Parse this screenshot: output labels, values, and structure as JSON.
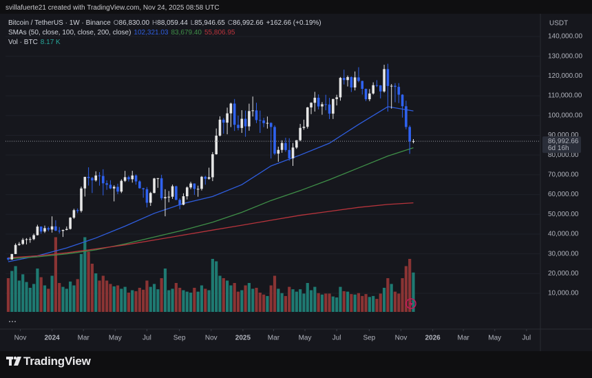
{
  "header": {
    "attribution": "svillafuerte21 created with TradingView.com, Nov 24, 2025 08:58 UTC"
  },
  "chart_data": {
    "type": "candlestick",
    "symbol": "Bitcoin / TetherUS · 1W · Binance",
    "ohlc_fields": [
      {
        "key": "O",
        "label": "86,830.00"
      },
      {
        "key": "H",
        "label": "88,059.44"
      },
      {
        "key": "L",
        "label": "85,946.65"
      },
      {
        "key": "C",
        "label": "86,992.66"
      }
    ],
    "change_label": "+162.66 (+0.19%)",
    "sma_title": "SMAs (50, close, 100, close, 200, close)",
    "volume_title": "Vol · BTC",
    "currency": "USDT",
    "up_color": "#e6e6e6",
    "down_color": "#2f62f0",
    "ohlc": [
      [
        27950,
        28100,
        26550,
        27150
      ],
      [
        27150,
        30000,
        26950,
        29900
      ],
      [
        29900,
        35280,
        29850,
        34500
      ],
      [
        34500,
        35980,
        34080,
        35000
      ],
      [
        35000,
        38000,
        34530,
        37100
      ],
      [
        37100,
        37960,
        34750,
        37400
      ],
      [
        37400,
        38430,
        35600,
        37450
      ],
      [
        37450,
        40250,
        36900,
        39450
      ],
      [
        39450,
        44700,
        39300,
        43800
      ],
      [
        43800,
        43900,
        40200,
        41300
      ],
      [
        41300,
        44300,
        40550,
        43000
      ],
      [
        43000,
        43800,
        41400,
        42300
      ],
      [
        42300,
        48970,
        40750,
        43900
      ],
      [
        43900,
        47000,
        41500,
        41700
      ],
      [
        41700,
        43580,
        40300,
        41600
      ],
      [
        41600,
        42250,
        38550,
        42100
      ],
      [
        42100,
        43860,
        41880,
        42600
      ],
      [
        42600,
        48590,
        42270,
        48300
      ],
      [
        48300,
        52800,
        47700,
        52100
      ],
      [
        52100,
        52980,
        50600,
        51700
      ],
      [
        51700,
        64000,
        50900,
        63100
      ],
      [
        63100,
        69000,
        59000,
        68950
      ],
      [
        68950,
        73800,
        64550,
        68400
      ],
      [
        68400,
        68920,
        60780,
        67200
      ],
      [
        67200,
        71770,
        66540,
        69650
      ],
      [
        69650,
        71340,
        64500,
        69400
      ],
      [
        69400,
        72800,
        59600,
        65700
      ],
      [
        65700,
        67200,
        62400,
        64950
      ],
      [
        64950,
        67250,
        62750,
        63100
      ],
      [
        63100,
        64750,
        56550,
        63900
      ],
      [
        63900,
        65500,
        60190,
        61500
      ],
      [
        61500,
        67700,
        60750,
        66950
      ],
      [
        66950,
        71980,
        66350,
        68800
      ],
      [
        68800,
        69560,
        66600,
        67750
      ],
      [
        67750,
        72000,
        66050,
        69650
      ],
      [
        69650,
        70200,
        65000,
        66650
      ],
      [
        66650,
        67230,
        63000,
        63200
      ],
      [
        63200,
        63400,
        58400,
        62700
      ],
      [
        62700,
        63800,
        53500,
        55850
      ],
      [
        55850,
        61400,
        54260,
        60800
      ],
      [
        60800,
        68450,
        60650,
        68150
      ],
      [
        68150,
        68400,
        63400,
        68250
      ],
      [
        68250,
        70000,
        57200,
        58150
      ],
      [
        58150,
        62700,
        49000,
        58700
      ],
      [
        58700,
        61800,
        56100,
        58900
      ],
      [
        58900,
        65050,
        57800,
        64200
      ],
      [
        64200,
        64480,
        57200,
        57300
      ],
      [
        57300,
        58100,
        52550,
        54850
      ],
      [
        54850,
        60650,
        54600,
        59150
      ],
      [
        59150,
        64130,
        57500,
        63600
      ],
      [
        63600,
        66500,
        62700,
        65600
      ],
      [
        65600,
        65650,
        59800,
        62850
      ],
      [
        62850,
        64500,
        58900,
        62900
      ],
      [
        62900,
        69400,
        62050,
        69000
      ],
      [
        69000,
        69500,
        65000,
        68000
      ],
      [
        68000,
        73600,
        67500,
        68750
      ],
      [
        68750,
        81500,
        66800,
        80400
      ],
      [
        80400,
        93450,
        80200,
        89800
      ],
      [
        89800,
        99600,
        89400,
        97900
      ],
      [
        97900,
        98800,
        90800,
        96400
      ],
      [
        96400,
        104000,
        90500,
        101100
      ],
      [
        101100,
        106500,
        94150,
        106050
      ],
      [
        106050,
        108350,
        92200,
        95300
      ],
      [
        95300,
        99960,
        92500,
        93700
      ],
      [
        93700,
        102700,
        91200,
        98350
      ],
      [
        98350,
        102500,
        89250,
        94500
      ],
      [
        94500,
        106000,
        92300,
        102250
      ],
      [
        102250,
        109600,
        99500,
        102600
      ],
      [
        102600,
        106450,
        96150,
        97700
      ],
      [
        97700,
        102500,
        91200,
        97500
      ],
      [
        97500,
        98830,
        94100,
        96150
      ],
      [
        96150,
        99500,
        93380,
        96250
      ],
      [
        96250,
        96550,
        78250,
        94200
      ],
      [
        94200,
        95000,
        80000,
        80700
      ],
      [
        80700,
        84250,
        76600,
        82600
      ],
      [
        82600,
        87450,
        81150,
        86100
      ],
      [
        86100,
        88750,
        81650,
        82550
      ],
      [
        82550,
        88500,
        77100,
        78350
      ],
      [
        78350,
        86100,
        74500,
        83800
      ],
      [
        83800,
        87600,
        83100,
        87500
      ],
      [
        87500,
        95750,
        87000,
        93750
      ],
      [
        93750,
        97900,
        92800,
        94300
      ],
      [
        94300,
        104350,
        93400,
        104100
      ],
      [
        104100,
        106700,
        100700,
        106450
      ],
      [
        106450,
        111980,
        102000,
        109000
      ],
      [
        109000,
        110700,
        103100,
        104600
      ],
      [
        104600,
        106800,
        100400,
        105700
      ],
      [
        105700,
        110500,
        102650,
        105600
      ],
      [
        105600,
        108950,
        98200,
        100950
      ],
      [
        100950,
        108500,
        98250,
        108350
      ],
      [
        108350,
        110500,
        105100,
        109200
      ],
      [
        109200,
        119500,
        107500,
        119050
      ],
      [
        119050,
        123200,
        115700,
        117950
      ],
      [
        117950,
        120250,
        114700,
        119450
      ],
      [
        119450,
        119800,
        111900,
        114200
      ],
      [
        114200,
        122300,
        112700,
        119300
      ],
      [
        119300,
        124450,
        116800,
        117500
      ],
      [
        117500,
        117600,
        110600,
        113500
      ],
      [
        113500,
        113650,
        107300,
        108250
      ],
      [
        108250,
        113400,
        107250,
        111150
      ],
      [
        111150,
        116800,
        110600,
        115350
      ],
      [
        115350,
        117900,
        114400,
        115250
      ],
      [
        115250,
        115400,
        108650,
        112200
      ],
      [
        112200,
        125700,
        111600,
        123500
      ],
      [
        123500,
        126200,
        102000,
        114950
      ],
      [
        114950,
        115950,
        103500,
        115050
      ],
      [
        115050,
        116400,
        106700,
        114500
      ],
      [
        114500,
        116400,
        106300,
        110550
      ],
      [
        110550,
        110800,
        98950,
        104700
      ],
      [
        104700,
        107500,
        93000,
        94200
      ],
      [
        94200,
        95000,
        80600,
        86830
      ],
      [
        86830,
        88059.44,
        85946.65,
        86992.66
      ]
    ],
    "volume": {
      "values": [
        7000,
        8500,
        9500,
        6500,
        7800,
        6200,
        5000,
        5800,
        9000,
        7200,
        5500,
        4800,
        7500,
        15500,
        6000,
        5200,
        4800,
        6300,
        5500,
        6800,
        12000,
        15500,
        12500,
        10000,
        8000,
        6500,
        7500,
        6500,
        5800,
        5300,
        5500,
        4800,
        5200,
        4000,
        4500,
        4300,
        5000,
        4600,
        6500,
        5200,
        5800,
        4700,
        7000,
        9000,
        4500,
        4800,
        6000,
        5000,
        4500,
        4200,
        4000,
        5000,
        4200,
        5500,
        4800,
        4500,
        11000,
        10500,
        7500,
        7000,
        6500,
        5500,
        6000,
        4200,
        4500,
        5500,
        6000,
        4800,
        5000,
        4000,
        3600,
        3300,
        5500,
        7500,
        4800,
        3900,
        3300,
        5200,
        4700,
        4200,
        4700,
        3800,
        6000,
        4500,
        5200,
        3900,
        3600,
        3800,
        3800,
        3200,
        3000,
        5200,
        4300,
        4200,
        3700,
        3600,
        3900,
        3300,
        3700,
        3100,
        3300,
        2700,
        3800,
        5000,
        7000,
        5800,
        4200,
        3800,
        7000,
        9500,
        11000,
        8170
      ],
      "last_label": "8.17 K",
      "vlim": [
        0,
        40000
      ],
      "up_color": "#1f7a72",
      "down_color": "#8a3434",
      "label_color": "#26a69a"
    },
    "sma": [
      {
        "color": "#2f5ee0",
        "last_label": "102,321.03",
        "x": [
          0,
          8,
          16,
          24,
          32,
          40,
          48,
          56,
          64,
          72,
          80,
          88,
          96,
          104,
          111
        ],
        "values": [
          26000,
          29000,
          33000,
          38000,
          44000,
          50500,
          55500,
          59000,
          65000,
          74500,
          80000,
          86000,
          95500,
          104500,
          102321.03
        ]
      },
      {
        "color": "#3f8f48",
        "last_label": "83,679.40",
        "x": [
          0,
          8,
          16,
          24,
          32,
          40,
          48,
          56,
          64,
          72,
          80,
          88,
          96,
          104,
          111
        ],
        "values": [
          27500,
          28500,
          30000,
          32000,
          35000,
          38500,
          42000,
          46000,
          51000,
          57000,
          62000,
          67500,
          73500,
          79500,
          83679.4
        ]
      },
      {
        "color": "#b8343c",
        "last_label": "55,806.95",
        "x": [
          0,
          8,
          16,
          24,
          32,
          40,
          48,
          56,
          64,
          72,
          80,
          88,
          96,
          104,
          111
        ],
        "values": [
          28000,
          29000,
          30500,
          32500,
          34500,
          37000,
          39500,
          42000,
          44500,
          47000,
          49500,
          51500,
          53500,
          55000,
          55806.95
        ]
      }
    ],
    "last_price": {
      "value": 86992.66,
      "label": "86,992.66"
    },
    "countdown": "6d 16h",
    "xlim": [
      -0.75,
      145.8
    ],
    "xticks": [
      {
        "value": 3.3,
        "label": "Nov"
      },
      {
        "value": 12,
        "label": "2024"
      },
      {
        "value": 20.6,
        "label": "Mar"
      },
      {
        "value": 29.3,
        "label": "May"
      },
      {
        "value": 38,
        "label": "Jul"
      },
      {
        "value": 46.9,
        "label": "Sep"
      },
      {
        "value": 55.6,
        "label": "Nov"
      },
      {
        "value": 64.3,
        "label": "2025"
      },
      {
        "value": 72.7,
        "label": "Mar"
      },
      {
        "value": 81.3,
        "label": "May"
      },
      {
        "value": 90,
        "label": "Jul"
      },
      {
        "value": 98.9,
        "label": "Sep"
      },
      {
        "value": 107.6,
        "label": "Nov"
      },
      {
        "value": 116.3,
        "label": "2026"
      },
      {
        "value": 124.7,
        "label": "Mar"
      },
      {
        "value": 133.3,
        "label": "May"
      },
      {
        "value": 142,
        "label": "Jul"
      }
    ],
    "ylim": [
      -8100,
      150800
    ],
    "yticks": [
      {
        "value": 10000,
        "label": "10,000.00"
      },
      {
        "value": 20000,
        "label": "20,000.00"
      },
      {
        "value": 30000,
        "label": "30,000.00"
      },
      {
        "value": 40000,
        "label": "40,000.00"
      },
      {
        "value": 50000,
        "label": "50,000.00"
      },
      {
        "value": 60000,
        "label": "60,000.00"
      },
      {
        "value": 70000,
        "label": "70,000.00"
      },
      {
        "value": 80000,
        "label": "80,000.00"
      },
      {
        "value": 90000,
        "label": "90,000.00"
      },
      {
        "value": 100000,
        "label": "100,000.00"
      },
      {
        "value": 110000,
        "label": "110,000.00"
      },
      {
        "value": 120000,
        "label": "120,000.00"
      },
      {
        "value": 130000,
        "label": "130,000.00"
      },
      {
        "value": 140000,
        "label": "140,000.00"
      }
    ]
  },
  "footer": {
    "brand": "TradingView"
  }
}
